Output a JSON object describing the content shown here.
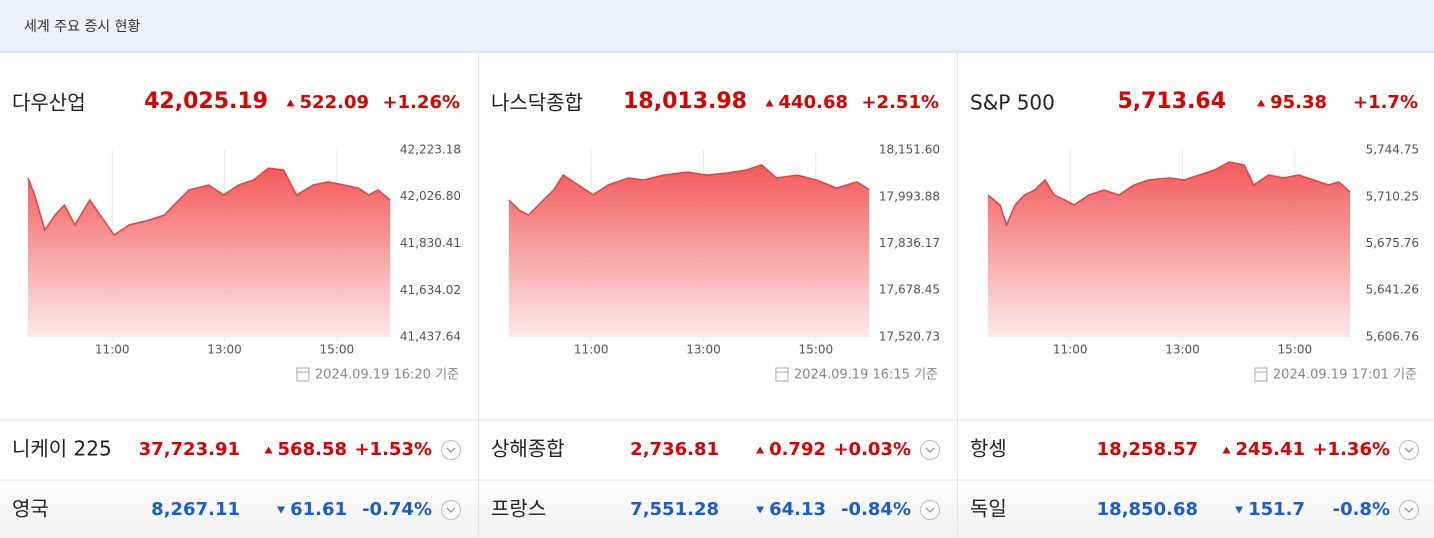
{
  "header": {
    "title": "세계 주요 증시 현황"
  },
  "panels": [
    {
      "name": "다우산업",
      "price": "42,025.19",
      "change": "522.09",
      "percent": "+1.26%",
      "direction": "up",
      "timestamp": "2024.09.19 16:20 기준",
      "chart_data": {
        "type": "area",
        "color": "#f03c3c",
        "x": [
          570,
          577,
          588,
          599,
          609,
          620,
          636,
          647,
          662,
          678,
          700,
          716,
          726,
          742,
          763,
          779,
          795,
          811,
          827,
          843,
          857,
          875,
          891,
          907,
          923,
          934,
          944,
          957
        ],
        "values": [
          42106,
          42034,
          41887,
          41950,
          41992,
          41908,
          42013,
          41950,
          41866,
          41908,
          41929,
          41950,
          41992,
          42055,
          42076,
          42034,
          42076,
          42097,
          42147,
          42139,
          42034,
          42076,
          42089,
          42076,
          42063,
          42034,
          42055,
          42013
        ],
        "xlim": [
          570,
          960
        ],
        "ylim": [
          41437.64,
          42223.18
        ],
        "xticks": [
          {
            "value": 660,
            "label": "11:00"
          },
          {
            "value": 780,
            "label": "13:00"
          },
          {
            "value": 900,
            "label": "15:00"
          }
        ],
        "yticks": [
          {
            "value": 42223.18,
            "label": "42,223.18"
          },
          {
            "value": 42026.8,
            "label": "42,026.80"
          },
          {
            "value": 41830.41,
            "label": "41,830.41"
          },
          {
            "value": 41634.02,
            "label": "41,634.02"
          },
          {
            "value": 41437.64,
            "label": "41,437.64"
          }
        ]
      }
    },
    {
      "name": "나스닥종합",
      "price": "18,013.98",
      "change": "440.68",
      "percent": "+2.51%",
      "direction": "up",
      "timestamp": "2024.09.19 16:15 기준",
      "chart_data": {
        "type": "area",
        "color": "#f03c3c",
        "x": [
          572,
          583,
          593,
          609,
          620,
          630,
          646,
          662,
          678,
          700,
          716,
          737,
          763,
          784,
          805,
          826,
          842,
          858,
          880,
          901,
          922,
          944,
          957
        ],
        "values": [
          17983,
          17949,
          17932,
          17983,
          18017,
          18067,
          18034,
          18000,
          18034,
          18057,
          18050,
          18067,
          18077,
          18067,
          18074,
          18084,
          18101,
          18057,
          18067,
          18050,
          18023,
          18044,
          18017
        ],
        "xlim": [
          570,
          960
        ],
        "ylim": [
          17520.73,
          18151.6
        ],
        "xticks": [
          {
            "value": 660,
            "label": "11:00"
          },
          {
            "value": 780,
            "label": "13:00"
          },
          {
            "value": 900,
            "label": "15:00"
          }
        ],
        "yticks": [
          {
            "value": 18151.6,
            "label": "18,151.60"
          },
          {
            "value": 17993.88,
            "label": "17,993.88"
          },
          {
            "value": 17836.17,
            "label": "17,836.17"
          },
          {
            "value": 17678.45,
            "label": "17,678.45"
          },
          {
            "value": 17520.73,
            "label": "17,520.73"
          }
        ]
      }
    },
    {
      "name": "S&P 500",
      "price": "5,713.64",
      "change": "95.38",
      "percent": "+1.7%",
      "direction": "up",
      "timestamp": "2024.09.19 17:01 기준",
      "chart_data": {
        "type": "area",
        "color": "#f03c3c",
        "x": [
          572,
          585,
          592,
          601,
          611,
          622,
          633,
          643,
          654,
          664,
          680,
          696,
          712,
          728,
          744,
          766,
          782,
          798,
          814,
          830,
          846,
          856,
          872,
          888,
          904,
          920,
          936,
          947,
          959
        ],
        "values": [
          5711.5,
          5704.2,
          5689.4,
          5704.2,
          5711.5,
          5715.2,
          5722.6,
          5711.5,
          5707.9,
          5704.2,
          5711.5,
          5715.2,
          5711.5,
          5718.9,
          5722.6,
          5724.1,
          5722.6,
          5726.3,
          5730.0,
          5735.9,
          5733.7,
          5718.9,
          5726.3,
          5724.1,
          5726.3,
          5722.6,
          5718.9,
          5721.1,
          5713.7
        ],
        "xlim": [
          570,
          960
        ],
        "ylim": [
          5606.76,
          5744.75
        ],
        "xticks": [
          {
            "value": 660,
            "label": "11:00"
          },
          {
            "value": 780,
            "label": "13:00"
          },
          {
            "value": 900,
            "label": "15:00"
          }
        ],
        "yticks": [
          {
            "value": 5744.75,
            "label": "5,744.75"
          },
          {
            "value": 5710.25,
            "label": "5,710.25"
          },
          {
            "value": 5675.76,
            "label": "5,675.76"
          },
          {
            "value": 5641.26,
            "label": "5,641.26"
          },
          {
            "value": 5606.76,
            "label": "5,606.76"
          }
        ]
      }
    }
  ],
  "rows": [
    [
      {
        "name": "니케이 225",
        "price": "37,723.91",
        "change": "568.58",
        "percent": "+1.53%",
        "direction": "up"
      },
      {
        "name": "상해종합",
        "price": "2,736.81",
        "change": "0.792",
        "percent": "+0.03%",
        "direction": "up"
      },
      {
        "name": "항셍",
        "price": "18,258.57",
        "change": "245.41",
        "percent": "+1.36%",
        "direction": "up"
      }
    ],
    [
      {
        "name": "영국",
        "price": "8,267.11",
        "change": "61.61",
        "percent": "-0.74%",
        "direction": "down"
      },
      {
        "name": "프랑스",
        "price": "7,551.28",
        "change": "64.13",
        "percent": "-0.84%",
        "direction": "down"
      },
      {
        "name": "독일",
        "price": "18,850.68",
        "change": "151.7",
        "percent": "-0.8%",
        "direction": "down"
      }
    ]
  ]
}
